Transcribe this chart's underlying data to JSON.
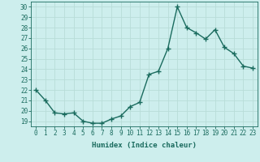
{
  "xlabel": "Humidex (Indice chaleur)",
  "ylabel": "",
  "x": [
    0,
    1,
    2,
    3,
    4,
    5,
    6,
    7,
    8,
    9,
    10,
    11,
    12,
    13,
    14,
    15,
    16,
    17,
    18,
    19,
    20,
    21,
    22,
    23
  ],
  "y": [
    22.0,
    21.0,
    19.8,
    19.7,
    19.8,
    19.0,
    18.8,
    18.8,
    19.2,
    19.5,
    20.4,
    20.8,
    23.5,
    23.8,
    26.0,
    30.0,
    28.0,
    27.5,
    26.9,
    27.8,
    26.1,
    25.5,
    24.3,
    24.1
  ],
  "line_color": "#1a6b5e",
  "marker": "+",
  "marker_size": 4,
  "line_width": 1.0,
  "bg_color": "#cdeeed",
  "grid_color": "#b8ddd8",
  "ylim_min": 18.5,
  "ylim_max": 30.5,
  "yticks": [
    19,
    20,
    21,
    22,
    23,
    24,
    25,
    26,
    27,
    28,
    29,
    30
  ],
  "xticks": [
    0,
    1,
    2,
    3,
    4,
    5,
    6,
    7,
    8,
    9,
    10,
    11,
    12,
    13,
    14,
    15,
    16,
    17,
    18,
    19,
    20,
    21,
    22,
    23
  ],
  "tick_fontsize": 5.5,
  "label_fontsize": 6.5,
  "tick_color": "#1a6b5e",
  "axes_color": "#1a6b5e"
}
